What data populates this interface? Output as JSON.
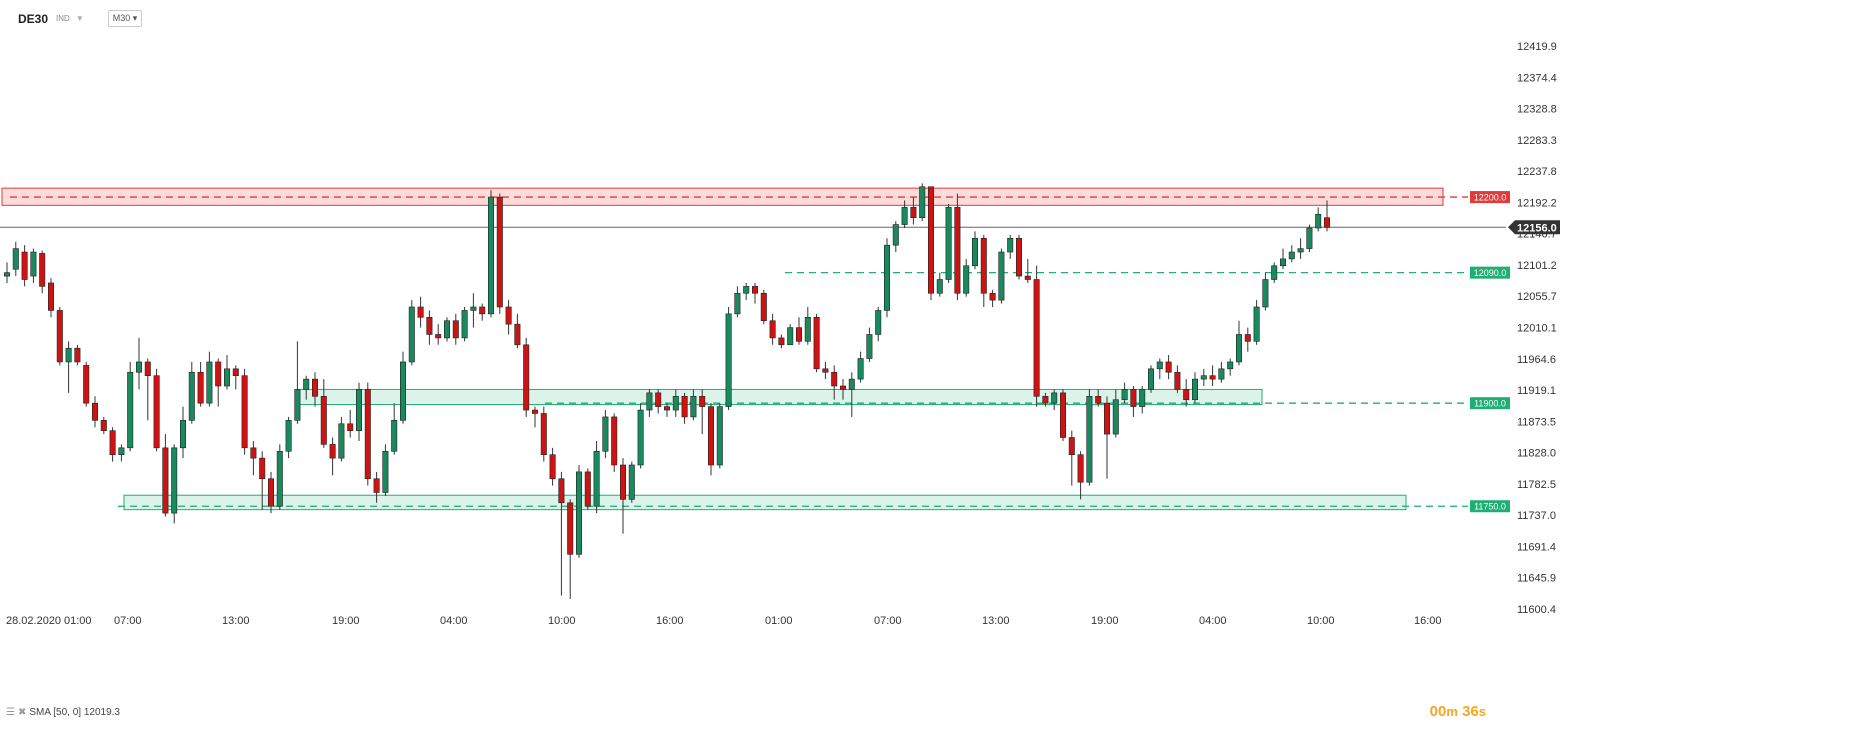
{
  "header": {
    "symbol": "DE30",
    "market": "IND",
    "timeframe": "M30"
  },
  "indicator": {
    "label": "SMA [50, 0] 12019.3"
  },
  "timer": {
    "m": "00",
    "s": "36"
  },
  "colors": {
    "up": "#1a8a5e",
    "down": "#cc1414",
    "resistance": "#e03a3a",
    "support": "#1fae73",
    "price": "#555555"
  },
  "chart_data": {
    "type": "candlestick",
    "ylim": [
      11600.4,
      12419.9
    ],
    "y_ticks": [
      "12419.9",
      "12374.4",
      "12328.8",
      "12283.3",
      "12237.8",
      "12192.2",
      "12146.7",
      "12101.2",
      "12055.7",
      "12010.1",
      "11964.6",
      "11919.1",
      "11873.5",
      "11828.0",
      "11782.5",
      "11737.0",
      "11691.4",
      "11645.9",
      "11600.4"
    ],
    "x_labels": [
      "28.02.2020",
      "01:00",
      "07:00",
      "13:00",
      "19:00",
      "04:00",
      "10:00",
      "16:00",
      "01:00",
      "07:00",
      "13:00",
      "19:00",
      "04:00",
      "10:00",
      "16:00"
    ],
    "current_price": "12156.0",
    "levels": [
      {
        "value": "12200.0",
        "type": "resistance"
      },
      {
        "value": "12090.0",
        "type": "support"
      },
      {
        "value": "11900.0",
        "type": "support"
      },
      {
        "value": "11750.0",
        "type": "support"
      }
    ],
    "zones": [
      {
        "top": 12213,
        "bottom": 12188,
        "type": "resistance"
      },
      {
        "top": 11920,
        "bottom": 11898,
        "type": "support"
      },
      {
        "top": 11766,
        "bottom": 11745,
        "type": "support"
      }
    ],
    "candles": [
      [
        12085,
        12090,
        12075,
        12105
      ],
      [
        12095,
        12125,
        12085,
        12135
      ],
      [
        12120,
        12080,
        12070,
        12130
      ],
      [
        12085,
        12120,
        12075,
        12125
      ],
      [
        12118,
        12070,
        12060,
        12122
      ],
      [
        12075,
        12035,
        12025,
        12082
      ],
      [
        12035,
        11960,
        11955,
        12040
      ],
      [
        11960,
        11980,
        11915,
        11990
      ],
      [
        11980,
        11960,
        11955,
        11985
      ],
      [
        11955,
        11900,
        11895,
        11960
      ],
      [
        11900,
        11875,
        11865,
        11910
      ],
      [
        11875,
        11860,
        11855,
        11880
      ],
      [
        11860,
        11825,
        11815,
        11865
      ],
      [
        11825,
        11835,
        11815,
        11840
      ],
      [
        11835,
        11945,
        11830,
        11960
      ],
      [
        11945,
        11960,
        11920,
        11995
      ],
      [
        11960,
        11940,
        11875,
        11965
      ],
      [
        11940,
        11835,
        11830,
        11950
      ],
      [
        11835,
        11740,
        11735,
        11855
      ],
      [
        11740,
        11835,
        11725,
        11840
      ],
      [
        11835,
        11875,
        11820,
        11895
      ],
      [
        11875,
        11945,
        11870,
        11960
      ],
      [
        11945,
        11900,
        11895,
        11960
      ],
      [
        11900,
        11960,
        11895,
        11975
      ],
      [
        11960,
        11925,
        11895,
        11965
      ],
      [
        11925,
        11950,
        11920,
        11970
      ],
      [
        11950,
        11940,
        11920,
        11955
      ],
      [
        11940,
        11835,
        11825,
        11950
      ],
      [
        11835,
        11820,
        11795,
        11845
      ],
      [
        11820,
        11790,
        11745,
        11830
      ],
      [
        11790,
        11750,
        11740,
        11800
      ],
      [
        11750,
        11830,
        11745,
        11840
      ],
      [
        11830,
        11875,
        11820,
        11880
      ],
      [
        11875,
        11920,
        11870,
        11990
      ],
      [
        11920,
        11935,
        11905,
        11940
      ],
      [
        11935,
        11910,
        11895,
        11945
      ],
      [
        11910,
        11840,
        11835,
        11935
      ],
      [
        11840,
        11820,
        11795,
        11850
      ],
      [
        11820,
        11870,
        11815,
        11880
      ],
      [
        11870,
        11860,
        11850,
        11890
      ],
      [
        11860,
        11920,
        11845,
        11930
      ],
      [
        11920,
        11790,
        11780,
        11930
      ],
      [
        11790,
        11770,
        11755,
        11800
      ],
      [
        11770,
        11830,
        11765,
        11840
      ],
      [
        11830,
        11875,
        11825,
        11900
      ],
      [
        11875,
        11960,
        11870,
        11975
      ],
      [
        11960,
        12040,
        11955,
        12050
      ],
      [
        12040,
        12025,
        12010,
        12055
      ],
      [
        12025,
        12000,
        11985,
        12035
      ],
      [
        12000,
        11995,
        11985,
        12015
      ],
      [
        11995,
        12020,
        11990,
        12025
      ],
      [
        12020,
        11995,
        11985,
        12030
      ],
      [
        11995,
        12035,
        11990,
        12040
      ],
      [
        12035,
        12040,
        12010,
        12060
      ],
      [
        12040,
        12030,
        12020,
        12045
      ],
      [
        12030,
        12200,
        12025,
        12210
      ],
      [
        12200,
        12040,
        12030,
        12205
      ],
      [
        12040,
        12015,
        12000,
        12050
      ],
      [
        12015,
        11985,
        11980,
        12030
      ],
      [
        11985,
        11890,
        11880,
        11995
      ],
      [
        11890,
        11885,
        11865,
        11895
      ],
      [
        11885,
        11825,
        11815,
        11895
      ],
      [
        11825,
        11790,
        11780,
        11835
      ],
      [
        11790,
        11755,
        11620,
        11800
      ],
      [
        11755,
        11680,
        11615,
        11760
      ],
      [
        11680,
        11800,
        11675,
        11810
      ],
      [
        11800,
        11750,
        11745,
        11805
      ],
      [
        11750,
        11830,
        11740,
        11845
      ],
      [
        11830,
        11880,
        11820,
        11890
      ],
      [
        11880,
        11810,
        11800,
        11885
      ],
      [
        11810,
        11760,
        11710,
        11820
      ],
      [
        11760,
        11810,
        11755,
        11815
      ],
      [
        11810,
        11890,
        11805,
        11900
      ],
      [
        11890,
        11915,
        11880,
        11920
      ],
      [
        11915,
        11895,
        11885,
        11920
      ],
      [
        11895,
        11890,
        11880,
        11900
      ],
      [
        11890,
        11910,
        11880,
        11920
      ],
      [
        11910,
        11880,
        11870,
        11915
      ],
      [
        11880,
        11910,
        11875,
        11920
      ],
      [
        11910,
        11895,
        11855,
        11920
      ],
      [
        11895,
        11810,
        11795,
        11900
      ],
      [
        11810,
        11895,
        11805,
        11900
      ],
      [
        11895,
        12030,
        11890,
        12040
      ],
      [
        12030,
        12060,
        12025,
        12070
      ],
      [
        12060,
        12070,
        12050,
        12075
      ],
      [
        12070,
        12060,
        12045,
        12075
      ],
      [
        12060,
        12020,
        12015,
        12065
      ],
      [
        12020,
        11995,
        11985,
        12030
      ],
      [
        11995,
        11985,
        11980,
        12000
      ],
      [
        11985,
        12010,
        11985,
        12015
      ],
      [
        12010,
        11990,
        11985,
        12025
      ],
      [
        11990,
        12025,
        11985,
        12040
      ],
      [
        12025,
        11950,
        11945,
        12030
      ],
      [
        11950,
        11945,
        11935,
        11960
      ],
      [
        11945,
        11925,
        11905,
        11955
      ],
      [
        11925,
        11920,
        11905,
        11935
      ],
      [
        11920,
        11935,
        11880,
        11945
      ],
      [
        11935,
        11965,
        11930,
        11975
      ],
      [
        11965,
        12000,
        11960,
        12010
      ],
      [
        12000,
        12035,
        11990,
        12040
      ],
      [
        12035,
        12130,
        12025,
        12140
      ],
      [
        12130,
        12160,
        12120,
        12165
      ],
      [
        12160,
        12185,
        12155,
        12195
      ],
      [
        12185,
        12170,
        12160,
        12200
      ],
      [
        12170,
        12215,
        12165,
        12220
      ],
      [
        12215,
        12060,
        12050,
        12210
      ],
      [
        12060,
        12080,
        12055,
        12090
      ],
      [
        12080,
        12185,
        12075,
        12190
      ],
      [
        12185,
        12060,
        12050,
        12205
      ],
      [
        12060,
        12100,
        12055,
        12110
      ],
      [
        12100,
        12140,
        12095,
        12150
      ],
      [
        12140,
        12060,
        12040,
        12145
      ],
      [
        12060,
        12050,
        12040,
        12065
      ],
      [
        12050,
        12120,
        12045,
        12125
      ],
      [
        12120,
        12140,
        12110,
        12145
      ],
      [
        12140,
        12085,
        12080,
        12145
      ],
      [
        12085,
        12080,
        12075,
        12110
      ],
      [
        12080,
        11910,
        11895,
        12100
      ],
      [
        11910,
        11900,
        11895,
        11915
      ],
      [
        11900,
        11915,
        11890,
        11920
      ],
      [
        11915,
        11850,
        11845,
        11920
      ],
      [
        11850,
        11825,
        11780,
        11860
      ],
      [
        11825,
        11785,
        11760,
        11830
      ],
      [
        11785,
        11910,
        11780,
        11920
      ],
      [
        11910,
        11900,
        11895,
        11920
      ],
      [
        11900,
        11855,
        11790,
        11910
      ],
      [
        11855,
        11905,
        11850,
        11920
      ],
      [
        11905,
        11920,
        11900,
        11930
      ],
      [
        11920,
        11895,
        11880,
        11925
      ],
      [
        11895,
        11920,
        11885,
        11925
      ],
      [
        11920,
        11950,
        11915,
        11955
      ],
      [
        11950,
        11960,
        11935,
        11965
      ],
      [
        11960,
        11945,
        11935,
        11970
      ],
      [
        11945,
        11920,
        11915,
        11955
      ],
      [
        11920,
        11905,
        11895,
        11935
      ],
      [
        11905,
        11935,
        11900,
        11945
      ],
      [
        11935,
        11940,
        11925,
        11950
      ],
      [
        11940,
        11935,
        11925,
        11955
      ],
      [
        11935,
        11950,
        11930,
        11960
      ],
      [
        11950,
        11960,
        11940,
        11965
      ],
      [
        11960,
        12000,
        11955,
        12020
      ],
      [
        12000,
        11990,
        11975,
        12010
      ],
      [
        11990,
        12040,
        11985,
        12050
      ],
      [
        12040,
        12080,
        12035,
        12090
      ],
      [
        12080,
        12100,
        12075,
        12105
      ],
      [
        12100,
        12110,
        12095,
        12125
      ],
      [
        12110,
        12120,
        12105,
        12130
      ],
      [
        12120,
        12125,
        12110,
        12140
      ],
      [
        12125,
        12155,
        12120,
        12160
      ],
      [
        12155,
        12175,
        12150,
        12185
      ],
      [
        12170,
        12156,
        12150,
        12195
      ]
    ]
  }
}
